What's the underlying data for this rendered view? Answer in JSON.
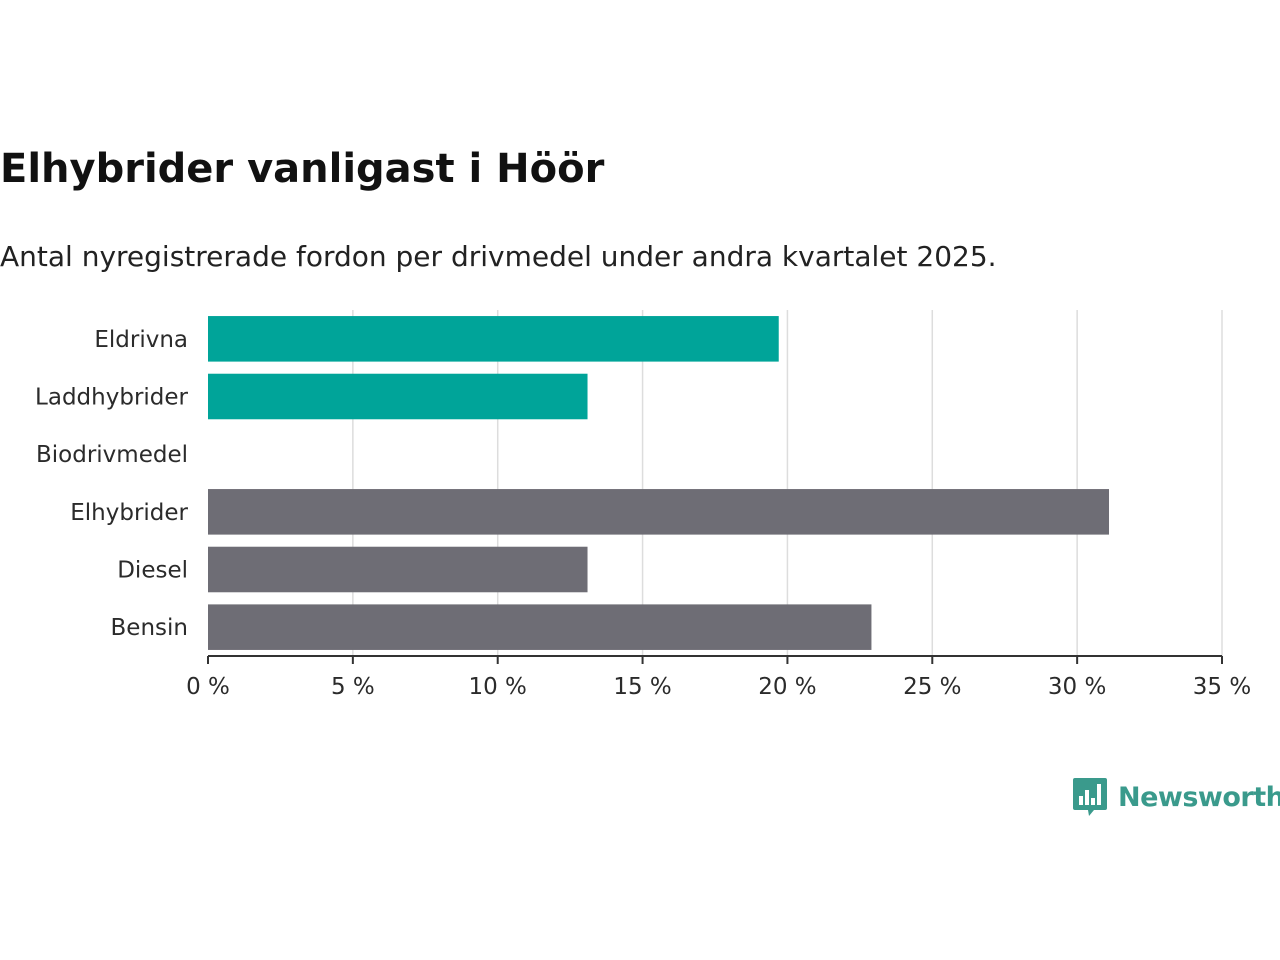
{
  "title": "Elhybrider vanligast i Höör",
  "subtitle": "Antal nyregistrerade fordon per drivmedel under andra kvartalet 2025.",
  "brand": {
    "name": "Newsworthy",
    "logo_icon": "bar-chart-speech-bubble-icon"
  },
  "colors": {
    "highlight": "#00a499",
    "default": "#6e6d75",
    "grid": "#dddddd",
    "axis": "#333333",
    "brand": "#3a9a8c"
  },
  "chart_data": {
    "type": "bar",
    "orientation": "horizontal",
    "categories": [
      "Eldrivna",
      "Laddhybrider",
      "Biodrivmedel",
      "Elhybrider",
      "Diesel",
      "Bensin"
    ],
    "values": [
      19.7,
      13.1,
      0,
      31.1,
      13.1,
      22.9
    ],
    "bar_colors": [
      "#00a499",
      "#00a499",
      "#00a499",
      "#6e6d75",
      "#6e6d75",
      "#6e6d75"
    ],
    "xlim": [
      0,
      35
    ],
    "xticks": [
      0,
      5,
      10,
      15,
      20,
      25,
      30,
      35
    ],
    "xtick_labels": [
      "0 %",
      "5 %",
      "10 %",
      "15 %",
      "20 %",
      "25 %",
      "30 %",
      "35 %"
    ],
    "grid": true,
    "xlabel": "",
    "ylabel": ""
  }
}
